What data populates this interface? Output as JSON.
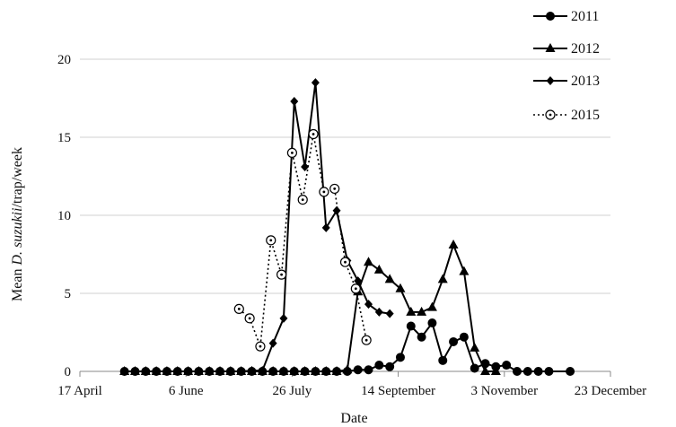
{
  "chart_data": {
    "type": "line",
    "title": "",
    "xlabel": "Date",
    "ylabel": "Mean D. suzukii/trap/week",
    "ylabel_parts": {
      "prefix": "Mean ",
      "italic": "D. suzukii",
      "suffix": "/trap/week"
    },
    "x_ticks": [
      {
        "doy": 107,
        "label": "17 April"
      },
      {
        "doy": 157,
        "label": "6 June"
      },
      {
        "doy": 207,
        "label": "26 July"
      },
      {
        "doy": 257,
        "label": "14 September"
      },
      {
        "doy": 307,
        "label": "3 November"
      },
      {
        "doy": 357,
        "label": "23 December"
      }
    ],
    "xlim": [
      107,
      357
    ],
    "ylim": [
      0,
      20
    ],
    "y_ticks": [
      0,
      5,
      10,
      15,
      20
    ],
    "grid": "horizontal",
    "legend_position": "top-right",
    "series": [
      {
        "name": "2011",
        "marker": "circle",
        "line_style": "solid",
        "x": [
          128,
          133,
          138,
          143,
          148,
          153,
          158,
          163,
          168,
          173,
          178,
          183,
          188,
          193,
          198,
          203,
          208,
          213,
          218,
          223,
          228,
          233,
          238,
          243,
          248,
          253,
          258,
          263,
          268,
          273,
          278,
          283,
          288,
          293,
          298,
          303,
          308,
          313,
          318,
          323,
          328,
          338
        ],
        "y": [
          0,
          0,
          0,
          0,
          0,
          0,
          0,
          0,
          0,
          0,
          0,
          0,
          0,
          0,
          0,
          0,
          0,
          0,
          0,
          0,
          0,
          0,
          0.1,
          0.1,
          0.4,
          0.3,
          0.9,
          2.9,
          2.2,
          3.1,
          0.7,
          1.9,
          2.2,
          0.2,
          0.5,
          0.3,
          0.4,
          0.0,
          0,
          0,
          0,
          0.0
        ]
      },
      {
        "name": "2012",
        "marker": "triangle",
        "line_style": "solid",
        "x": [
          128,
          133,
          138,
          143,
          148,
          153,
          158,
          163,
          168,
          173,
          178,
          183,
          188,
          193,
          198,
          203,
          208,
          213,
          218,
          223,
          228,
          233,
          238,
          243,
          248,
          253,
          258,
          263,
          268,
          273,
          278,
          283,
          288,
          293,
          298,
          303
        ],
        "y": [
          0,
          0,
          0,
          0,
          0,
          0,
          0,
          0,
          0,
          0,
          0,
          0,
          0,
          0,
          0,
          0,
          0,
          0,
          0,
          0,
          0,
          0.1,
          5.1,
          7.0,
          6.5,
          5.9,
          5.3,
          3.8,
          3.8,
          4.1,
          5.9,
          8.1,
          6.4,
          1.5,
          0,
          0
        ]
      },
      {
        "name": "2013",
        "marker": "diamond",
        "line_style": "solid",
        "x": [
          128,
          133,
          138,
          143,
          148,
          153,
          158,
          163,
          168,
          173,
          178,
          183,
          188,
          193,
          198,
          203,
          208,
          213,
          218,
          223,
          228,
          233,
          238,
          243,
          248,
          253
        ],
        "y": [
          0,
          0,
          0,
          0,
          0,
          0,
          0,
          0,
          0,
          0,
          0,
          0,
          0.05,
          0.05,
          1.8,
          3.4,
          17.3,
          13.1,
          18.5,
          9.2,
          10.3,
          7.1,
          5.8,
          4.3,
          3.8,
          3.7
        ]
      },
      {
        "name": "2015",
        "marker": "open-circle",
        "line_style": "dotted",
        "x": [
          182,
          187,
          192,
          197,
          202,
          207,
          212,
          217,
          222,
          227,
          232,
          237,
          242,
          247,
          252
        ],
        "y": [
          4.0,
          3.4,
          1.6,
          8.4,
          6.2,
          14.0,
          11.0,
          15.2,
          11.5,
          11.7,
          7.0,
          5.3,
          2.0,
          null,
          null
        ]
      }
    ]
  }
}
